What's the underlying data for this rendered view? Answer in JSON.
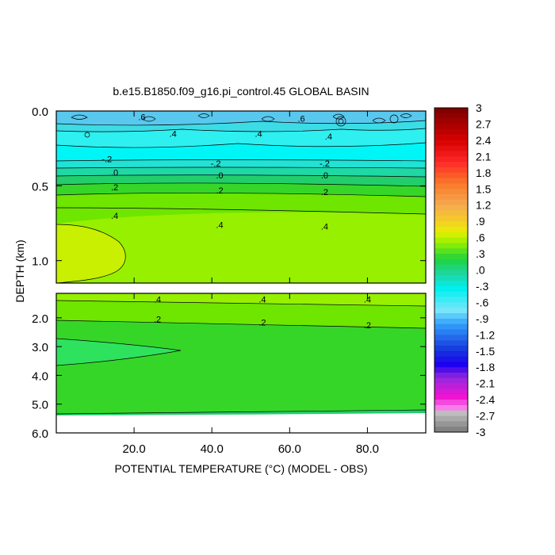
{
  "chart_data": {
    "type": "heatmap",
    "title": "b.e15.B1850.f09_g16.pi_control.45 GLOBAL BASIN",
    "xlabel": "POTENTIAL TEMPERATURE (°C) (MODEL - OBS)",
    "ylabel": "DEPTH (km)",
    "xlim": [
      0,
      95
    ],
    "x_ticks": [
      {
        "value": 20,
        "label": "20.0"
      },
      {
        "value": 40,
        "label": "40.0"
      },
      {
        "value": 60,
        "label": "60.0"
      },
      {
        "value": 80,
        "label": "80.0"
      }
    ],
    "upper_panel": {
      "ylim": [
        0,
        1.15
      ],
      "y_ticks": [
        {
          "value": 0,
          "label": "0.0"
        },
        {
          "value": 0.5,
          "label": "0.5"
        },
        {
          "value": 1.0,
          "label": "1.0"
        }
      ]
    },
    "lower_panel": {
      "ylim": [
        1.15,
        6.0
      ],
      "y_ticks": [
        {
          "value": 2,
          "label": "2.0"
        },
        {
          "value": 3,
          "label": "3.0"
        },
        {
          "value": 4,
          "label": "4.0"
        },
        {
          "value": 5,
          "label": "5.0"
        },
        {
          "value": 6,
          "label": "6.0"
        }
      ]
    },
    "colorbar": {
      "range": [
        -3,
        3
      ],
      "labels": [
        "3",
        "2.7",
        "2.4",
        "2.1",
        "1.8",
        "1.5",
        "1.2",
        ".9",
        ".6",
        ".3",
        ".0",
        "-.3",
        "-.6",
        "-.9",
        "-1.2",
        "-1.5",
        "-1.8",
        "-2.1",
        "-2.4",
        "-2.7",
        "-3"
      ]
    },
    "contour_labels_upper": [
      {
        "x": 22,
        "y": 0.04,
        "text": ".6"
      },
      {
        "x": 63,
        "y": 0.05,
        "text": ".6"
      },
      {
        "x": 30,
        "y": 0.15,
        "text": ".4"
      },
      {
        "x": 52,
        "y": 0.15,
        "text": ".4"
      },
      {
        "x": 70,
        "y": 0.17,
        "text": ".4"
      },
      {
        "x": 13,
        "y": 0.32,
        "text": "-.2"
      },
      {
        "x": 41,
        "y": 0.35,
        "text": "-.2"
      },
      {
        "x": 69,
        "y": 0.35,
        "text": "-.2"
      },
      {
        "x": 15,
        "y": 0.41,
        "text": ".0"
      },
      {
        "x": 42,
        "y": 0.43,
        "text": ".0"
      },
      {
        "x": 69,
        "y": 0.43,
        "text": ".0"
      },
      {
        "x": 15,
        "y": 0.51,
        "text": ".2"
      },
      {
        "x": 42,
        "y": 0.53,
        "text": ".2"
      },
      {
        "x": 69,
        "y": 0.54,
        "text": ".2"
      },
      {
        "x": 15,
        "y": 0.7,
        "text": ".4"
      },
      {
        "x": 42,
        "y": 0.76,
        "text": ".4"
      },
      {
        "x": 69,
        "y": 0.77,
        "text": ".4"
      }
    ],
    "contour_labels_lower": [
      {
        "x": 26,
        "y": 1.35,
        "text": ".4"
      },
      {
        "x": 53,
        "y": 1.35,
        "text": ".4"
      },
      {
        "x": 80,
        "y": 1.35,
        "text": ".4"
      },
      {
        "x": 26,
        "y": 2.05,
        "text": ".2"
      },
      {
        "x": 53,
        "y": 2.15,
        "text": ".2"
      },
      {
        "x": 80,
        "y": 2.25,
        "text": ".2"
      }
    ]
  }
}
